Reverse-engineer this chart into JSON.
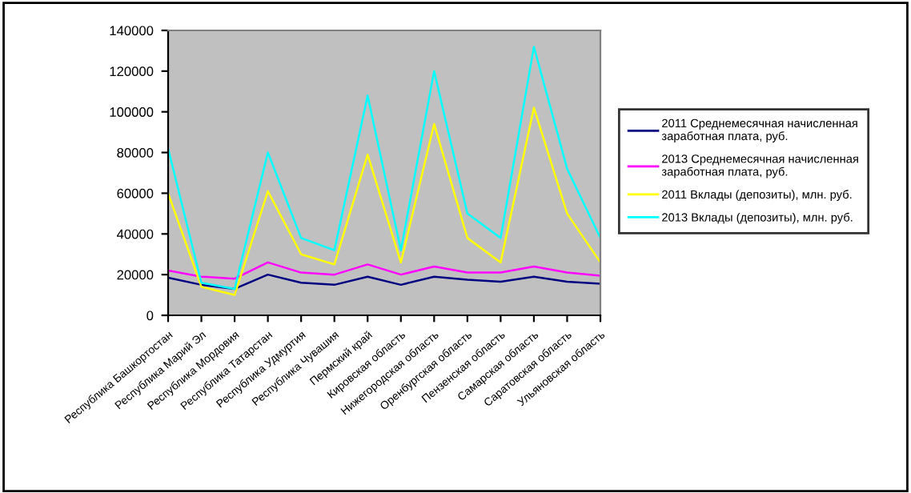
{
  "chart_data": {
    "type": "line",
    "categories": [
      "Республика Башкортостан",
      "Республика Марий Эл",
      "Республика Мордовия",
      "Республика Татарстан",
      "Республика Удмуртия",
      "Республика Чувашия",
      "Пермский край",
      "Кировская область",
      "Нижегородская область",
      "Оренбургская область",
      "Пензенская область",
      "Самарская область",
      "Саратовская область",
      "Ульяновская область"
    ],
    "series": [
      {
        "name": "2011 Среднемесячная начисленная заработная плата, руб.",
        "color": "#000080",
        "values": [
          18500,
          15000,
          13000,
          20000,
          16000,
          15000,
          19000,
          15000,
          19000,
          17500,
          16500,
          19000,
          16500,
          15500
        ]
      },
      {
        "name": "2013 Среднемесячная начисленная заработная плата, руб.",
        "color": "#ff00ff",
        "values": [
          22000,
          19000,
          18000,
          26000,
          21000,
          20000,
          25000,
          20000,
          24000,
          21000,
          21000,
          24000,
          21000,
          19500
        ]
      },
      {
        "name": "2011 Вклады (депозиты), млн. руб.",
        "color": "#ffff00",
        "values": [
          60000,
          14000,
          10000,
          61000,
          30000,
          25000,
          79000,
          26000,
          94000,
          38000,
          26000,
          102000,
          50000,
          26000
        ]
      },
      {
        "name": "2013 Вклады (депозиты), млн. руб.",
        "color": "#00ffff",
        "values": [
          82000,
          16000,
          13000,
          80000,
          38000,
          32000,
          108000,
          32000,
          120000,
          50000,
          38000,
          132000,
          72000,
          38000
        ]
      }
    ],
    "ylim": [
      0,
      140000
    ],
    "yticks": [
      0,
      20000,
      40000,
      60000,
      80000,
      100000,
      120000,
      140000
    ],
    "grid": false,
    "legend": "right",
    "marker": "none",
    "line_style": "solid"
  }
}
